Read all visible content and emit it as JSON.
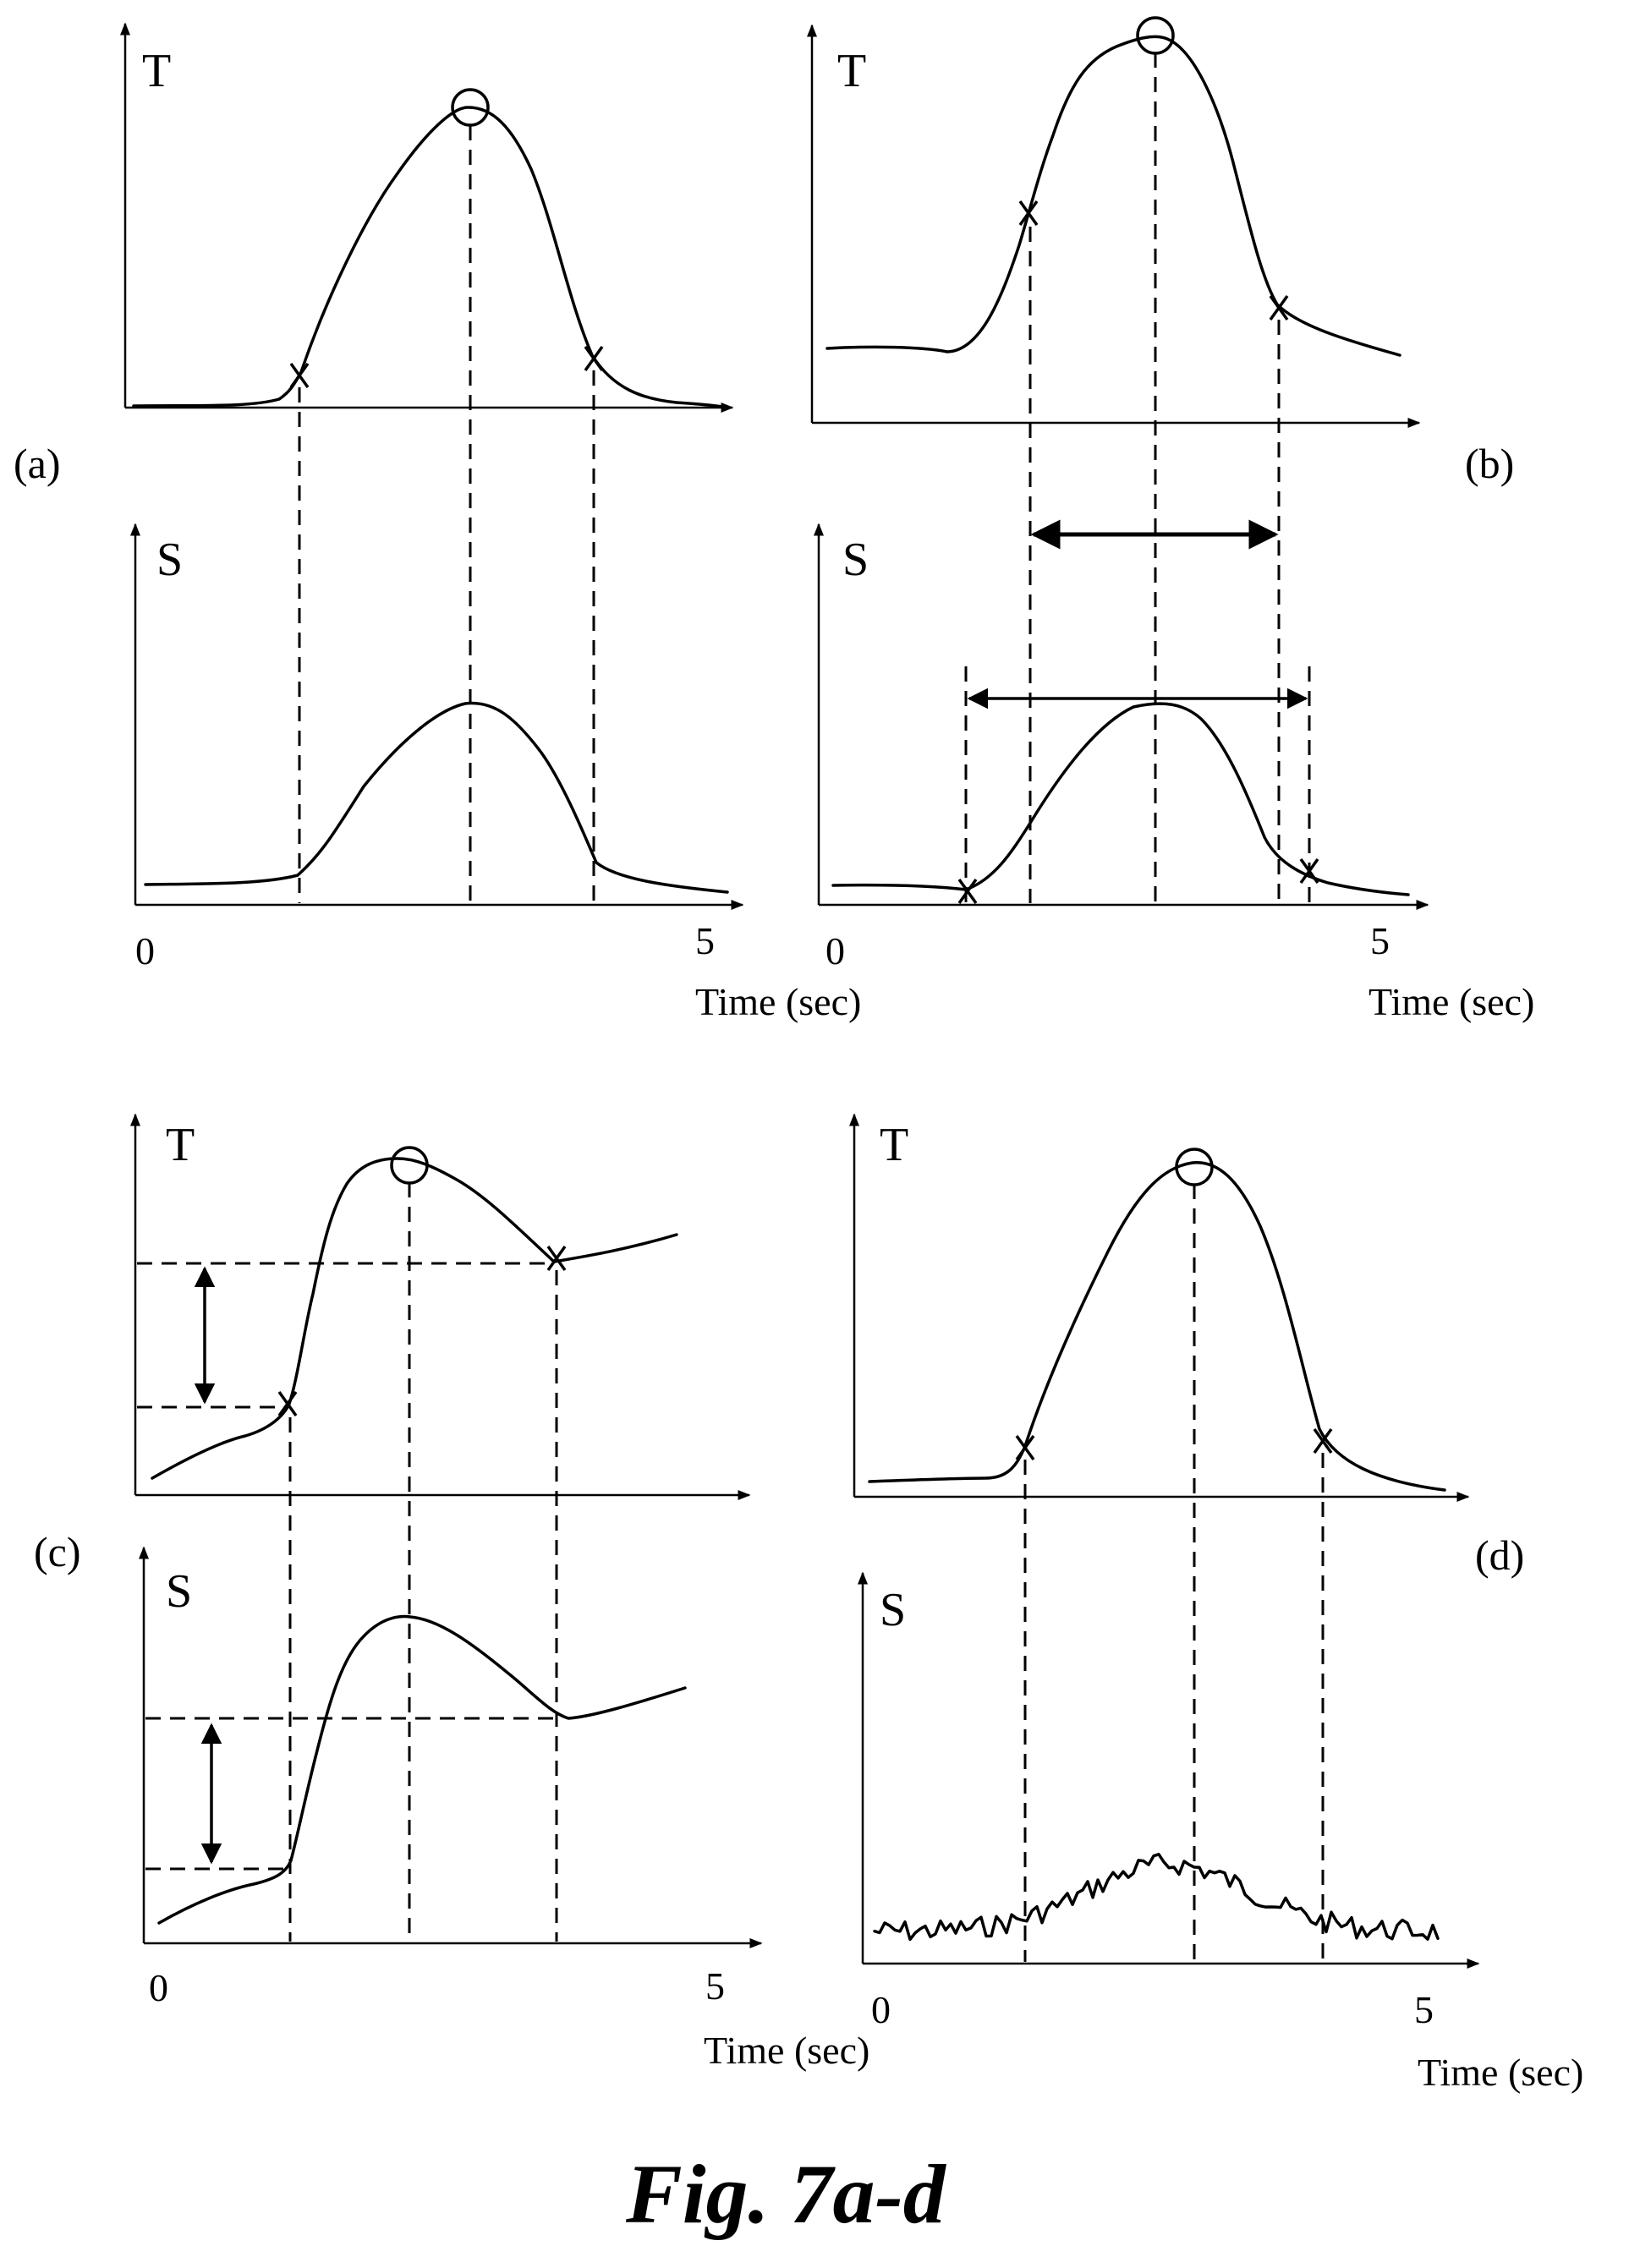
{
  "figure": {
    "caption": "Fig. 7a-d",
    "panels": {
      "a": {
        "tag": "(a)",
        "top_axis_letter": "T",
        "bottom_axis_letter": "S",
        "x_tick_start": "0",
        "x_tick_end": "5",
        "x_axis_title": "Time (sec)"
      },
      "b": {
        "tag": "(b)",
        "top_axis_letter": "T",
        "bottom_axis_letter": "S",
        "x_tick_start": "0",
        "x_tick_end": "5",
        "x_axis_title": "Time (sec)"
      },
      "c": {
        "tag": "(c)",
        "top_axis_letter": "T",
        "bottom_axis_letter": "S",
        "x_tick_start": "0",
        "x_tick_end": "5",
        "x_axis_title": "Time (sec)"
      },
      "d": {
        "tag": "(d)",
        "top_axis_letter": "T",
        "bottom_axis_letter": "S",
        "x_tick_start": "0",
        "x_tick_end": "5",
        "x_axis_title": "Time (sec)"
      }
    }
  }
}
